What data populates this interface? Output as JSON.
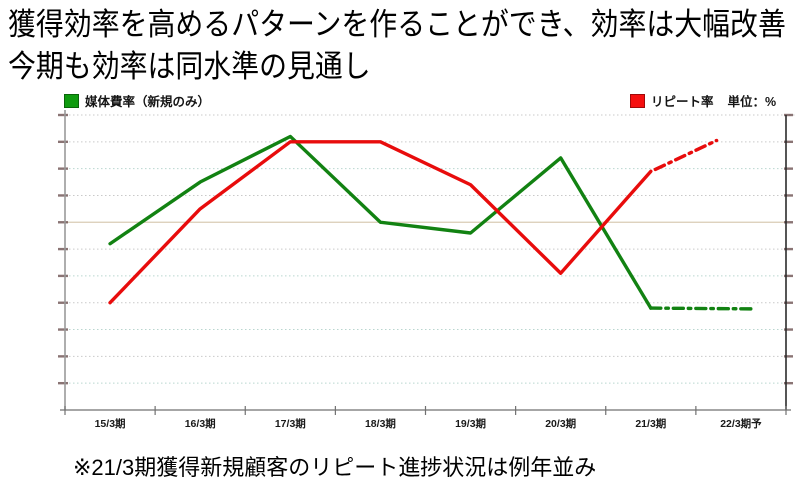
{
  "title": {
    "line1": "獲得効率を高めるパターンを作ることができ、効率は大幅改善",
    "line2": "今期も効率は同水準の見通し"
  },
  "legend": {
    "media_cost": {
      "label": "媒体費率（新規のみ）",
      "color": "#0f9b0f"
    },
    "repeat_rate": {
      "label": "リピート率",
      "color": "#f50f0f"
    },
    "unit_label": "単位：%"
  },
  "footnote": "※21/3期獲得新規顧客のリピート進捗状況は例年並み",
  "chart_data": {
    "type": "line",
    "title": "",
    "categories": [
      "15/3期",
      "16/3期",
      "17/3期",
      "18/3期",
      "19/3期",
      "20/3期",
      "21/3期",
      "22/3期予"
    ],
    "xlabel": "",
    "ylabel": "",
    "unit": "%",
    "legend_position": "top",
    "grid": true,
    "y_axis": {
      "tick_labels_visible": false,
      "gridline_unit_range": [
        0,
        11
      ],
      "note": "y-axis tick labels are illegible micro-marks in the source; series values are estimated in gridline units (1 unit = one gridline spacing, baseline 0 at the x-axis)"
    },
    "reference_gridline": {
      "at_value": 7,
      "style": "solid",
      "color": "#d9ccb4"
    },
    "series": [
      {
        "name": "媒体費率（新規のみ）",
        "color": "#128212",
        "values": [
          6.2,
          8.5,
          10.2,
          7.0,
          6.6,
          9.4,
          3.8,
          3.8
        ],
        "solid_through_index": 6,
        "forecast_style": "dash-dot",
        "forecast_segment": {
          "from": [
            6.0,
            3.8
          ],
          "to": [
            7.15,
            3.77
          ]
        }
      },
      {
        "name": "リピート率",
        "color": "#e80c0c",
        "values": [
          4.0,
          7.5,
          10.0,
          10.0,
          8.4,
          5.1,
          8.9,
          10.0
        ],
        "solid_through_index": 6,
        "forecast_style": "dash-dot",
        "forecast_segment": {
          "from": [
            6.05,
            8.97
          ],
          "to": [
            6.73,
            10.05
          ]
        }
      }
    ]
  }
}
